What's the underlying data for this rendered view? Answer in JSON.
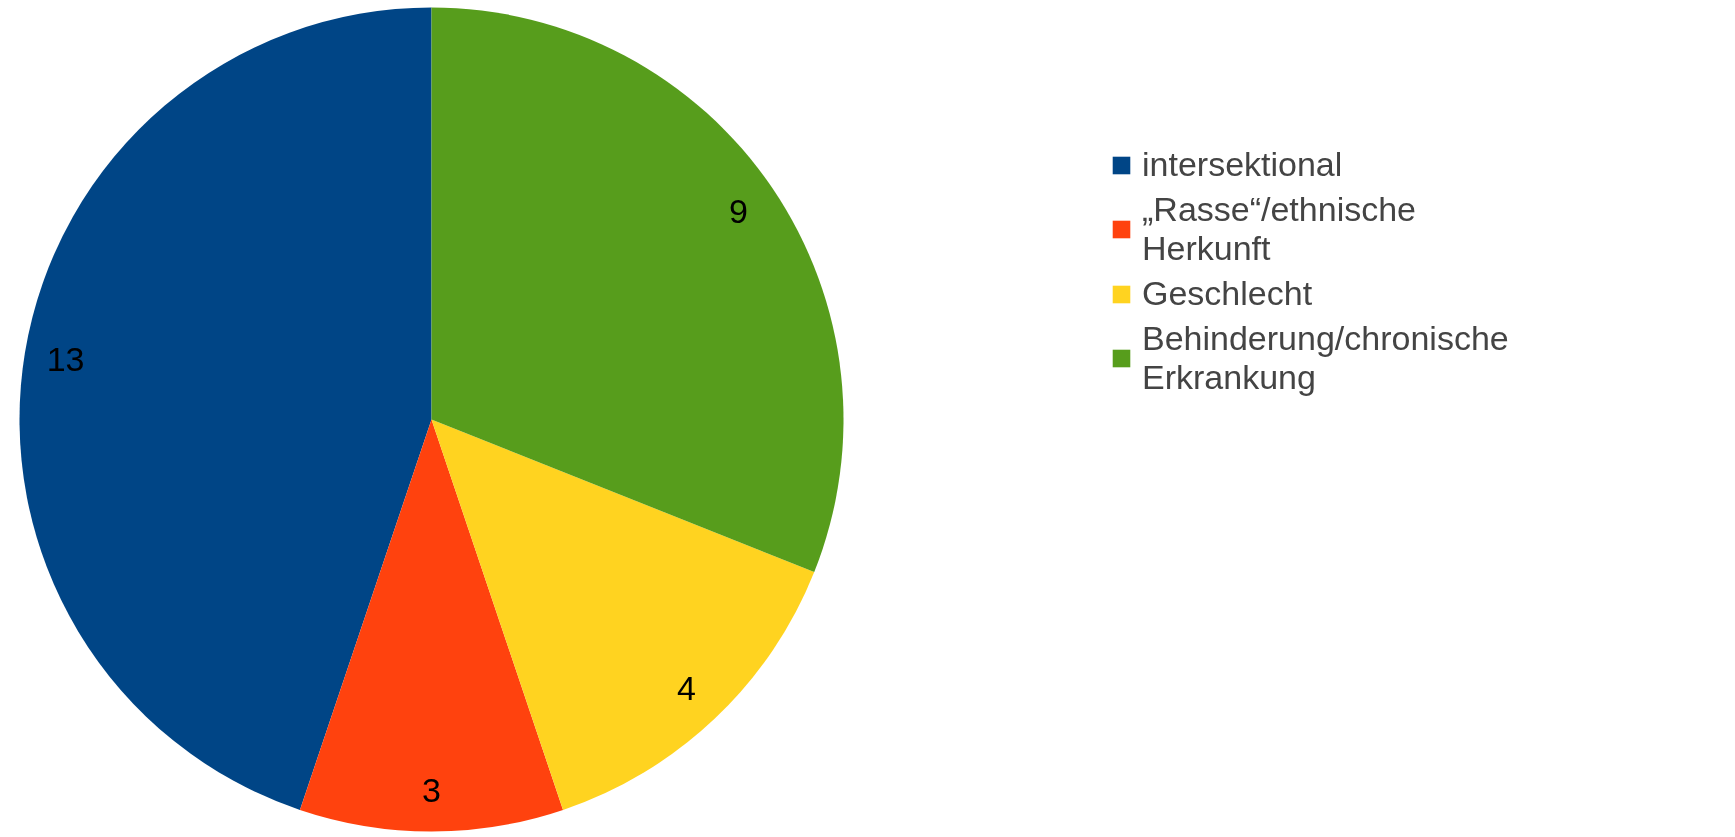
{
  "chart_data": {
    "type": "pie",
    "categories": [
      "intersektional",
      "„Rasse“/ethnische Herkunft",
      "Geschlecht",
      "Behinderung/chronische Erkrankung"
    ],
    "values": [
      13,
      3,
      4,
      9
    ],
    "colors": [
      "#004586",
      "#ff420e",
      "#ffd320",
      "#579d1c"
    ],
    "data_labels": true,
    "legend": "right"
  }
}
